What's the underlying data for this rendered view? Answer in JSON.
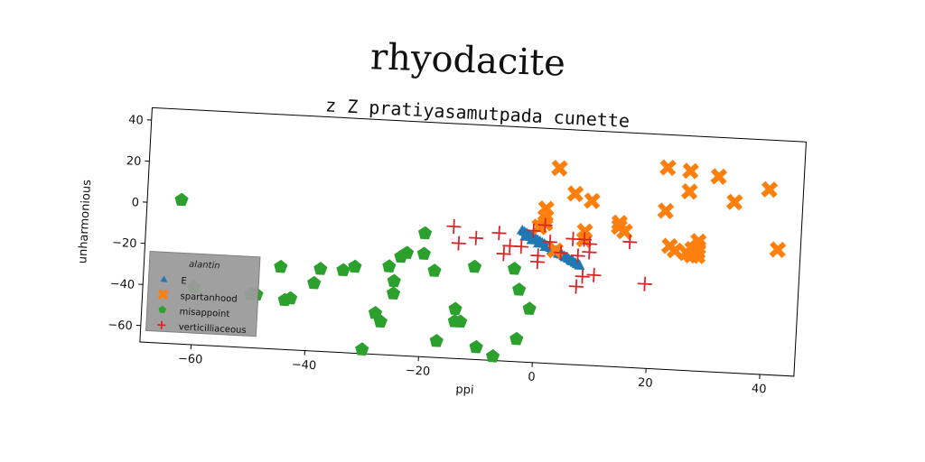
{
  "suptitle": "rhyodacite",
  "chart_data": {
    "type": "scatter",
    "title": "z Z pratiyasamutpada cunette",
    "xlabel": "ppi",
    "ylabel": "unharmonious",
    "xlim": [
      -69,
      46
    ],
    "ylim": [
      -68,
      46
    ],
    "xticks": [
      -60,
      -40,
      -20,
      0,
      20,
      40
    ],
    "yticks": [
      -60,
      -40,
      -20,
      0,
      20,
      40
    ],
    "xtick_labels": [
      "−60",
      "−40",
      "−20",
      "0",
      "20",
      "40"
    ],
    "ytick_labels": [
      "−60",
      "−40",
      "−20",
      "0",
      "20",
      "40"
    ],
    "grid": false,
    "legend": {
      "title": "alantin",
      "position": "lower-left"
    },
    "series": [
      {
        "name": "E",
        "marker": "triangle",
        "color": "#1f77b4",
        "x": [
          -3,
          -2.6,
          -2.2,
          -1.8,
          -1.4,
          -1,
          -0.6,
          -0.2,
          0.2,
          0.6,
          1,
          1.4,
          1.8,
          2.2,
          2.6,
          3,
          3.4,
          3.8,
          4.2,
          4.6,
          5,
          5.4,
          5.8,
          6.2,
          6.6,
          7,
          7.4,
          -2.4,
          -1.2,
          0,
          1.2,
          2.4,
          3.6,
          4.8,
          6,
          7.2
        ],
        "y": [
          -4,
          -4.6,
          -5.2,
          -5.8,
          -6.4,
          -7,
          -7.6,
          -8.2,
          -8.8,
          -9.4,
          -10,
          -10.6,
          -11.2,
          -11.8,
          -12.4,
          -13,
          -13.6,
          -14.2,
          -14.8,
          -15.4,
          -16,
          -16.6,
          -17.2,
          -17.8,
          -18.4,
          -19,
          -19.6,
          -7,
          -8.5,
          -10,
          -11.5,
          -13,
          -14.5,
          -16,
          -17.5,
          -19
        ]
      },
      {
        "name": "spartanhood",
        "marker": "x",
        "color": "#ff7f0e",
        "x": [
          3,
          6,
          9,
          1,
          1,
          1,
          0,
          8,
          8,
          3,
          14,
          14,
          15,
          22,
          22,
          26,
          26,
          28,
          28,
          28,
          27,
          26,
          24,
          31,
          34,
          40,
          42,
          23,
          27,
          28
        ],
        "y": [
          27,
          15,
          12,
          7,
          3,
          0,
          -2,
          -3,
          -7,
          -13,
          2,
          0,
          -2,
          30,
          9,
          29,
          19,
          -5,
          -8,
          -10,
          -12,
          -11,
          -10,
          27,
          15,
          22,
          -7,
          -8,
          -9,
          -12
        ]
      },
      {
        "name": "misappoint",
        "marker": "pentagon",
        "color": "#2ca02c",
        "x": [
          -63,
          -60,
          -50,
          -49,
          -45,
          -44,
          -43,
          -39,
          -38,
          -34,
          -32,
          -30,
          -28,
          -27,
          -26,
          -25,
          -25,
          -24,
          -23,
          -20,
          -20,
          -18,
          -17,
          -14,
          -14,
          -13,
          -11,
          -10,
          -7,
          -4,
          -3,
          -3,
          -1
        ],
        "y": [
          2,
          -40,
          -42,
          -42,
          -28,
          -44,
          -43,
          -35,
          -28,
          -28,
          -26,
          -66,
          -48,
          -52,
          -25,
          -32,
          -38,
          -20,
          -18,
          -8,
          -18,
          -26,
          -60,
          -50,
          -44,
          -50,
          -23,
          -62,
          -66,
          -23,
          -33,
          -57,
          -42
        ]
      },
      {
        "name": "verticilliaceous",
        "marker": "plus",
        "color": "#d62728",
        "x": [
          -15,
          -14,
          -11,
          -7,
          -6,
          -5,
          -3,
          -1,
          0,
          0,
          1,
          2,
          4,
          6,
          7,
          7,
          8,
          9,
          9,
          10,
          16,
          19,
          8
        ],
        "y": [
          -4,
          -12,
          -9,
          -6,
          -16,
          -12,
          -12,
          -4,
          -16,
          -19,
          -1,
          -9,
          -14,
          -7,
          -30,
          -15,
          -7,
          -9,
          -13,
          -24,
          -7,
          -27,
          -25
        ]
      }
    ]
  }
}
